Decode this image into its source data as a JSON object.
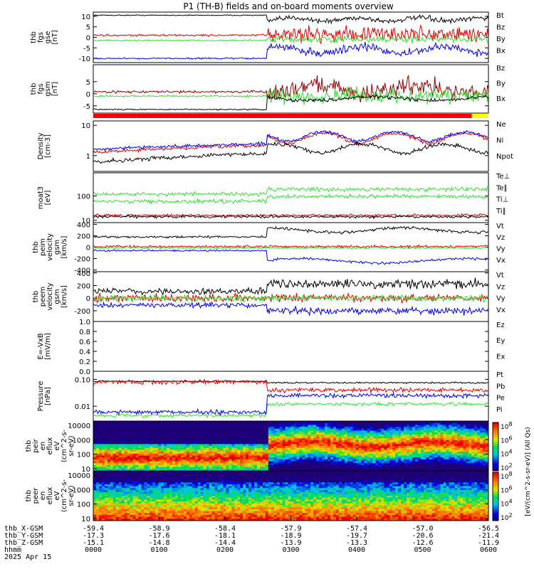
{
  "title": "P1  (TH-B) fields and on-board moments overview",
  "colors": {
    "black": "#000000",
    "red": "#e00000",
    "green": "#30e030",
    "blue": "#0000e0",
    "maroon": "#900000",
    "bar_red": "#ff0000",
    "bar_yellow": "#ffff00"
  },
  "chart_data": [
    {
      "type": "line",
      "id": "fgs_gse",
      "ylabel": [
        "thb",
        "fgs",
        "gse",
        "[nT]"
      ],
      "ylim": [
        -12,
        12
      ],
      "yticks": [
        "10",
        "5",
        "0",
        "-5",
        "-10"
      ],
      "series": [
        {
          "name": "Bt",
          "color": "black"
        },
        {
          "name": "Bz",
          "color": "red"
        },
        {
          "name": "By",
          "color": "green"
        },
        {
          "name": "Bx",
          "color": "blue"
        }
      ]
    },
    {
      "type": "line",
      "id": "fgs_gsm",
      "ylabel": [
        "thb",
        "fgs",
        "gsm",
        "[nT]"
      ],
      "ylim": [
        -8,
        12
      ],
      "yticks": [
        "5",
        "0",
        "-5"
      ],
      "series": [
        {
          "name": "Bz",
          "color": "maroon"
        },
        {
          "name": "By",
          "color": "green"
        },
        {
          "name": "Bx",
          "color": "black"
        }
      ]
    },
    {
      "type": "bar",
      "id": "mode_bar",
      "segments": [
        {
          "to": 0.958,
          "color": "bar_red"
        },
        {
          "to": 1.0,
          "color": "bar_yellow"
        }
      ]
    },
    {
      "type": "line",
      "id": "density",
      "ylabel": [
        "Density",
        "[cm-3]"
      ],
      "scale": "log",
      "ylim": [
        0.3,
        14
      ],
      "yticks": [
        "10",
        "1"
      ],
      "series": [
        {
          "name": "Ne",
          "color": "red"
        },
        {
          "name": "Ni",
          "color": "black"
        },
        {
          "name": "Npot",
          "color": "blue"
        }
      ]
    },
    {
      "type": "line",
      "id": "temp",
      "ylabel": [
        "moat3",
        "[eV]"
      ],
      "scale": "log",
      "ylim": [
        8,
        900
      ],
      "yticks": [
        "100",
        "10"
      ],
      "series": [
        {
          "name": "Te⊥",
          "color": "red"
        },
        {
          "name": "Te∥",
          "color": "black"
        },
        {
          "name": "Ti⊥",
          "color": "green"
        },
        {
          "name": "Ti∥",
          "color": "green"
        }
      ]
    },
    {
      "type": "line",
      "id": "peim_vel",
      "ylabel": [
        "thb",
        "peim",
        "velocity",
        "gsm",
        "[km/s]"
      ],
      "ylim": [
        -430,
        430
      ],
      "yticks": [
        "400",
        "200",
        "0",
        "-200",
        "-400"
      ],
      "series": [
        {
          "name": "Vt",
          "color": "black"
        },
        {
          "name": "Vz",
          "color": "red"
        },
        {
          "name": "Vy",
          "color": "green"
        },
        {
          "name": "Vx",
          "color": "blue"
        }
      ]
    },
    {
      "type": "line",
      "id": "peem_vel",
      "ylabel": [
        "thb",
        "peem",
        "velocity",
        "gsm",
        "[km/s]"
      ],
      "ylim": [
        -370,
        420
      ],
      "yticks": [
        "400",
        "200",
        "0",
        "-200"
      ],
      "series": [
        {
          "name": "Vt",
          "color": "black"
        },
        {
          "name": "Vz",
          "color": "red"
        },
        {
          "name": "Vy",
          "color": "green"
        },
        {
          "name": "Vx",
          "color": "blue"
        }
      ]
    },
    {
      "type": "line",
      "id": "efield",
      "ylabel": [
        "E=-VxB",
        "[mV/m]"
      ],
      "ylim": [
        0,
        1
      ],
      "yticks": [
        "1.0",
        "0.8",
        "0.6",
        "0.4",
        "0.2",
        "0.0"
      ],
      "series": [
        {
          "name": "Ez",
          "color": "red"
        },
        {
          "name": "Ey",
          "color": "green"
        },
        {
          "name": "Ex",
          "color": "blue"
        }
      ]
    },
    {
      "type": "line",
      "id": "pressure",
      "ylabel": [
        "Pressure",
        "[nPa]"
      ],
      "scale": "log",
      "ylim": [
        0.0028,
        0.2
      ],
      "yticks": [
        "0.10",
        "0.01"
      ],
      "series": [
        {
          "name": "Pt",
          "color": "black"
        },
        {
          "name": "Pb",
          "color": "red"
        },
        {
          "name": "Pe",
          "color": "green"
        },
        {
          "name": "Pi",
          "color": "blue"
        }
      ]
    },
    {
      "type": "heatmap",
      "id": "peir",
      "ylabel": [
        "thb",
        "peir",
        "en",
        "eflux",
        "eV",
        "(cm^2-s-",
        "sr-eV)"
      ],
      "scale": "log",
      "ylim": [
        7,
        20000
      ],
      "yticks": [
        "10000",
        "1000",
        "100",
        "10"
      ]
    },
    {
      "type": "heatmap",
      "id": "peer",
      "ylabel": [
        "thb",
        "peer",
        "en",
        "eflux",
        "eV",
        "(cm^2-s-",
        "sr-eV)"
      ],
      "scale": "log",
      "ylim": [
        7,
        20000
      ],
      "yticks": [
        "10000",
        "1000",
        "100",
        "10"
      ]
    }
  ],
  "colorbar": {
    "label": "[eV/(cm^2-s-sr-eV)] (All Qs)",
    "ticks": [
      "10^8",
      "10^6",
      "10^4",
      "10^2"
    ],
    "ticks_lower": [
      "10^8",
      "10^6",
      "10^4",
      "10^2"
    ]
  },
  "x_axis": {
    "labels": [
      "thb_X-GSM",
      "thb_Y-GSM",
      "thb_Z-GSM",
      "hhmm",
      "2025 Apr 15"
    ],
    "rows": [
      [
        "-59.4",
        "-58.9",
        "-58.4",
        "-57.9",
        "-57.4",
        "-57.0",
        "-56.5"
      ],
      [
        "-17.3",
        "-17.6",
        "-18.1",
        "-18.9",
        "-19.7",
        "-20.6",
        "-21.4"
      ],
      [
        "-15.1",
        "-14.8",
        "-14.4",
        "-13.9",
        "-13.3",
        "-12.6",
        "-11.9"
      ],
      [
        "0000",
        "0100",
        "0200",
        "0300",
        "0400",
        "0500",
        "0600"
      ]
    ]
  }
}
